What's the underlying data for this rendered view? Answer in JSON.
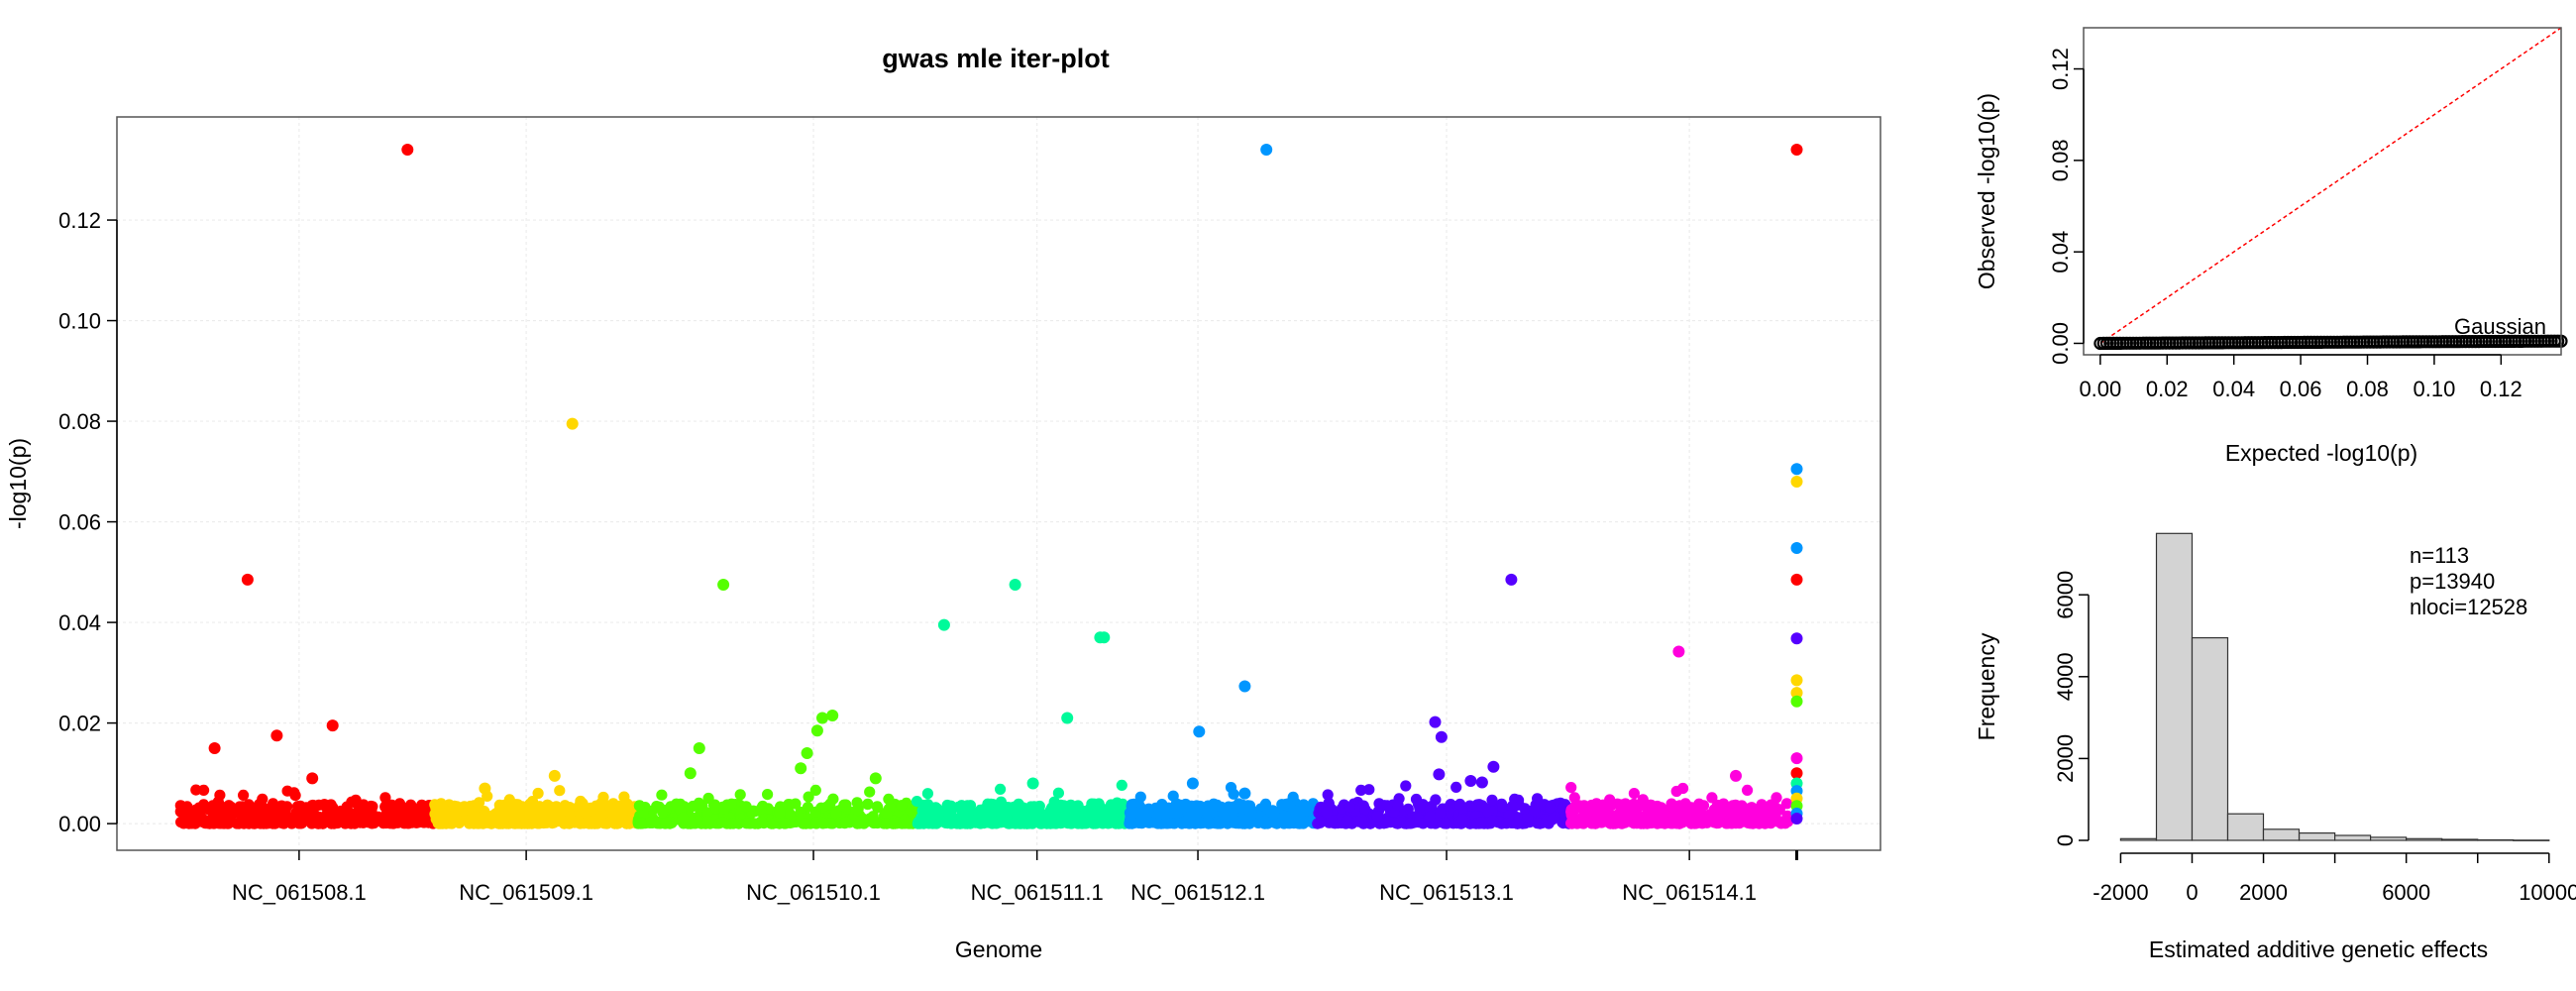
{
  "colors": {
    "chromosomes": [
      "#FF0000",
      "#FFD700",
      "#55FF00",
      "#00FA9A",
      "#0096FF",
      "#5500FF",
      "#FF00DD"
    ],
    "qq_line": "#FF0000",
    "qq_points": "#000000",
    "hist_fill": "#D3D3D3"
  },
  "chart_data": [
    {
      "type": "scatter",
      "subtype": "manhattan",
      "title": "gwas mle iter-plot",
      "xlabel": "Genome",
      "ylabel": "-log10(p)",
      "ylim": [
        0,
        0.135
      ],
      "yticks": [
        "0.00",
        "0.02",
        "0.04",
        "0.06",
        "0.08",
        "0.10",
        "0.12"
      ],
      "grid": true,
      "chromosomes": [
        {
          "name": "NC_061508.1",
          "range": [
            0,
            1000
          ],
          "label_at": 468
        },
        {
          "name": "NC_061509.1",
          "range": [
            1000,
            1800
          ],
          "label_at": 1363
        },
        {
          "name": "NC_061510.1",
          "range": [
            1800,
            2900
          ],
          "label_at": 2495
        },
        {
          "name": "NC_061511.1",
          "range": [
            2900,
            3740
          ],
          "label_at": 3376
        },
        {
          "name": "NC_061512.1",
          "range": [
            3740,
            4480
          ],
          "label_at": 4010
        },
        {
          "name": "NC_061513.1",
          "range": [
            4480,
            5480
          ],
          "label_at": 4990
        },
        {
          "name": "NC_061514.1",
          "range": [
            5480,
            6340
          ],
          "label_at": 5947
        }
      ],
      "unplaced_column_x": 6370,
      "xlim": [
        -250,
        6700
      ],
      "notable_points": [
        {
          "x": 895,
          "y": 0.134,
          "chr": 0
        },
        {
          "x": 265,
          "y": 0.0485,
          "chr": 0
        },
        {
          "x": 135,
          "y": 0.015,
          "chr": 0
        },
        {
          "x": 380,
          "y": 0.0175,
          "chr": 0
        },
        {
          "x": 600,
          "y": 0.0195,
          "chr": 0
        },
        {
          "x": 520,
          "y": 0.009,
          "chr": 0
        },
        {
          "x": 1545,
          "y": 0.0795,
          "chr": 1
        },
        {
          "x": 1475,
          "y": 0.0095,
          "chr": 1
        },
        {
          "x": 1200,
          "y": 0.007,
          "chr": 1
        },
        {
          "x": 2140,
          "y": 0.0475,
          "chr": 2
        },
        {
          "x": 2045,
          "y": 0.015,
          "chr": 2
        },
        {
          "x": 2010,
          "y": 0.01,
          "chr": 2
        },
        {
          "x": 2530,
          "y": 0.021,
          "chr": 2
        },
        {
          "x": 2570,
          "y": 0.0215,
          "chr": 2
        },
        {
          "x": 2510,
          "y": 0.0185,
          "chr": 2
        },
        {
          "x": 2470,
          "y": 0.014,
          "chr": 2
        },
        {
          "x": 2445,
          "y": 0.011,
          "chr": 2
        },
        {
          "x": 2740,
          "y": 0.009,
          "chr": 2
        },
        {
          "x": 3010,
          "y": 0.0395,
          "chr": 3
        },
        {
          "x": 3290,
          "y": 0.0475,
          "chr": 3
        },
        {
          "x": 3495,
          "y": 0.021,
          "chr": 3
        },
        {
          "x": 3625,
          "y": 0.037,
          "chr": 3
        },
        {
          "x": 3640,
          "y": 0.037,
          "chr": 3
        },
        {
          "x": 3360,
          "y": 0.008,
          "chr": 3
        },
        {
          "x": 4280,
          "y": 0.134,
          "chr": 4
        },
        {
          "x": 4015,
          "y": 0.0183,
          "chr": 4
        },
        {
          "x": 4195,
          "y": 0.0273,
          "chr": 4
        },
        {
          "x": 3990,
          "y": 0.008,
          "chr": 4
        },
        {
          "x": 4195,
          "y": 0.006,
          "chr": 4
        },
        {
          "x": 4945,
          "y": 0.0202,
          "chr": 5
        },
        {
          "x": 4970,
          "y": 0.0172,
          "chr": 5
        },
        {
          "x": 5245,
          "y": 0.0485,
          "chr": 5
        },
        {
          "x": 4960,
          "y": 0.0098,
          "chr": 5
        },
        {
          "x": 5085,
          "y": 0.0085,
          "chr": 5
        },
        {
          "x": 5130,
          "y": 0.0082,
          "chr": 5
        },
        {
          "x": 5175,
          "y": 0.0113,
          "chr": 5
        },
        {
          "x": 5905,
          "y": 0.0342,
          "chr": 6
        },
        {
          "x": 6130,
          "y": 0.0095,
          "chr": 6
        },
        {
          "x": 6370,
          "y": 0.134,
          "chr": 0
        },
        {
          "x": 6370,
          "y": 0.0705,
          "chr": 4
        },
        {
          "x": 6370,
          "y": 0.068,
          "chr": 1
        },
        {
          "x": 6370,
          "y": 0.0548,
          "chr": 4
        },
        {
          "x": 6370,
          "y": 0.0485,
          "chr": 0
        },
        {
          "x": 6370,
          "y": 0.0368,
          "chr": 5
        },
        {
          "x": 6370,
          "y": 0.0285,
          "chr": 1
        },
        {
          "x": 6370,
          "y": 0.026,
          "chr": 1
        },
        {
          "x": 6370,
          "y": 0.0243,
          "chr": 2
        },
        {
          "x": 6370,
          "y": 0.013,
          "chr": 6
        },
        {
          "x": 6370,
          "y": 0.01,
          "chr": 0
        },
        {
          "x": 6370,
          "y": 0.008,
          "chr": 3
        },
        {
          "x": 6370,
          "y": 0.0065,
          "chr": 4
        },
        {
          "x": 6370,
          "y": 0.005,
          "chr": 1
        },
        {
          "x": 6370,
          "y": 0.0035,
          "chr": 2
        },
        {
          "x": 6370,
          "y": 0.002,
          "chr": 4
        },
        {
          "x": 6370,
          "y": 0.001,
          "chr": 5
        }
      ],
      "baseline_band": {
        "ymin": 0.0,
        "ymax": 0.004,
        "points_per_chromosome": 380
      }
    },
    {
      "type": "scatter",
      "subtype": "qq",
      "xlabel": "Expected -log10(p)",
      "ylabel": "Observed -log10(p)",
      "xlim": [
        -0.005,
        0.138
      ],
      "ylim": [
        -0.005,
        0.138
      ],
      "xticks": [
        "0.00",
        "0.02",
        "0.04",
        "0.06",
        "0.08",
        "0.10",
        "0.12"
      ],
      "yticks": [
        "0.00",
        "0.04",
        "0.08",
        "0.12"
      ],
      "legend": "Gaussian",
      "reference_line": {
        "from": [
          0,
          0
        ],
        "to": [
          0.138,
          0.138
        ]
      },
      "observed_band": {
        "x": [
          0,
          0.138
        ],
        "y": [
          0,
          0.001
        ]
      }
    },
    {
      "type": "bar",
      "subtype": "histogram",
      "xlabel": "Estimated additive genetic effects",
      "ylabel": "Frequency",
      "xlim": [
        -2900,
        10200
      ],
      "ylim": [
        0,
        7700
      ],
      "xticks": [
        -2000,
        0,
        2000,
        6000,
        10000
      ],
      "yticks": [
        0,
        2000,
        4000,
        6000
      ],
      "bin_edges": [
        -2000,
        -1000,
        0,
        1000,
        2000,
        3000,
        4000,
        5000,
        6000,
        7000,
        8000,
        9000
      ],
      "values": [
        40,
        7500,
        4950,
        650,
        270,
        180,
        120,
        75,
        40,
        25,
        12,
        5
      ],
      "annotations": [
        "n=113",
        "p=13940",
        "nloci=12528"
      ]
    }
  ]
}
